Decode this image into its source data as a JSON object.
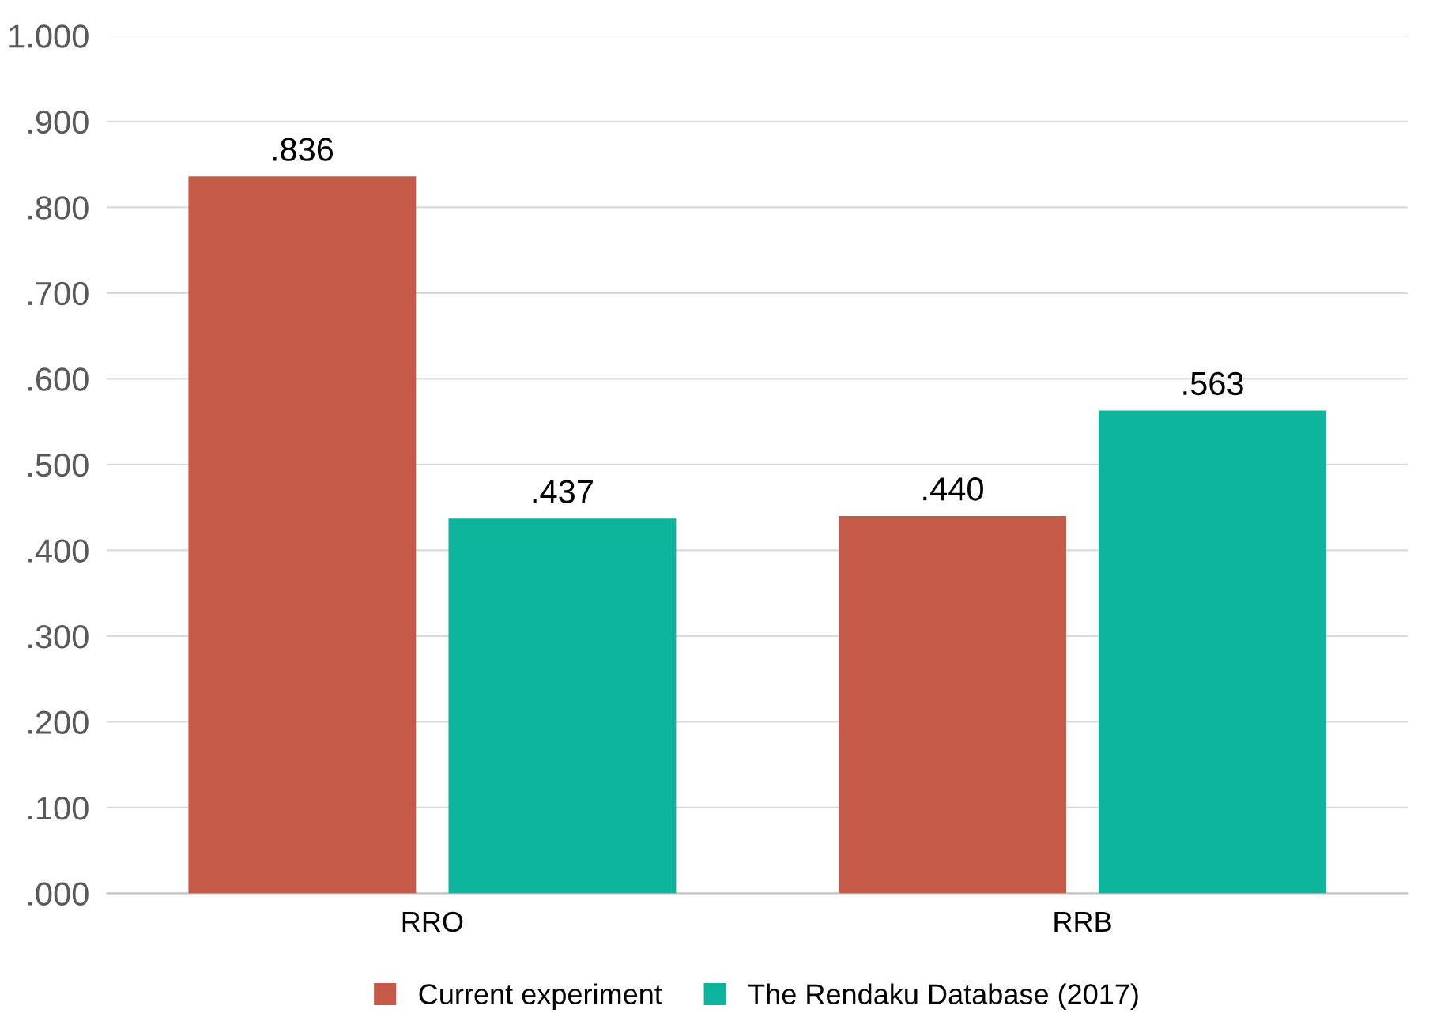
{
  "chart_data": {
    "type": "bar",
    "categories": [
      "RRO",
      "RRB"
    ],
    "series": [
      {
        "name": "Current experiment",
        "color": "#c55a47",
        "values": [
          0.836,
          0.44
        ],
        "value_labels": [
          ".836",
          ".440"
        ]
      },
      {
        "name": "The Rendaku Database (2017)",
        "color": "#0db59c",
        "values": [
          0.437,
          0.563
        ],
        "value_labels": [
          ".437",
          ".563"
        ]
      }
    ],
    "ylim": [
      0,
      1.0
    ],
    "yticks": [
      {
        "value": 0,
        "label": ".000"
      },
      {
        "value": 0.1,
        "label": ".100"
      },
      {
        "value": 0.2,
        "label": ".200"
      },
      {
        "value": 0.3,
        "label": ".300"
      },
      {
        "value": 0.4,
        "label": ".400"
      },
      {
        "value": 0.5,
        "label": ".500"
      },
      {
        "value": 0.6,
        "label": ".600"
      },
      {
        "value": 0.7,
        "label": ".700"
      },
      {
        "value": 0.8,
        "label": ".800"
      },
      {
        "value": 0.9,
        "label": ".900"
      },
      {
        "value": 1.0,
        "label": "1.000"
      }
    ],
    "grid": "y",
    "legend": "bottom"
  }
}
